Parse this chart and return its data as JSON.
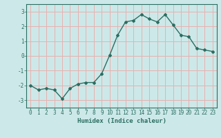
{
  "x": [
    0,
    1,
    2,
    3,
    4,
    5,
    6,
    7,
    8,
    9,
    10,
    11,
    12,
    13,
    14,
    15,
    16,
    17,
    18,
    19,
    20,
    21,
    22,
    23
  ],
  "y": [
    -2.0,
    -2.3,
    -2.2,
    -2.3,
    -2.9,
    -2.2,
    -1.9,
    -1.8,
    -1.8,
    -1.2,
    0.05,
    1.4,
    2.3,
    2.4,
    2.8,
    2.5,
    2.3,
    2.8,
    2.1,
    1.4,
    1.3,
    0.5,
    0.4,
    0.3
  ],
  "line_color": "#2a6e62",
  "marker": "D",
  "marker_size": 2.0,
  "bg_color": "#cde8e8",
  "grid_color": "#e8b0b0",
  "xlabel": "Humidex (Indice chaleur)",
  "ylim": [
    -3.5,
    3.5
  ],
  "xlim": [
    -0.5,
    23.5
  ],
  "yticks": [
    -3,
    -2,
    -1,
    0,
    1,
    2,
    3
  ],
  "xticks": [
    0,
    1,
    2,
    3,
    4,
    5,
    6,
    7,
    8,
    9,
    10,
    11,
    12,
    13,
    14,
    15,
    16,
    17,
    18,
    19,
    20,
    21,
    22,
    23
  ],
  "tick_color": "#2a6e62",
  "label_fontsize": 6.5,
  "tick_fontsize": 5.5,
  "spine_color": "#2a6e62",
  "linewidth": 1.0
}
